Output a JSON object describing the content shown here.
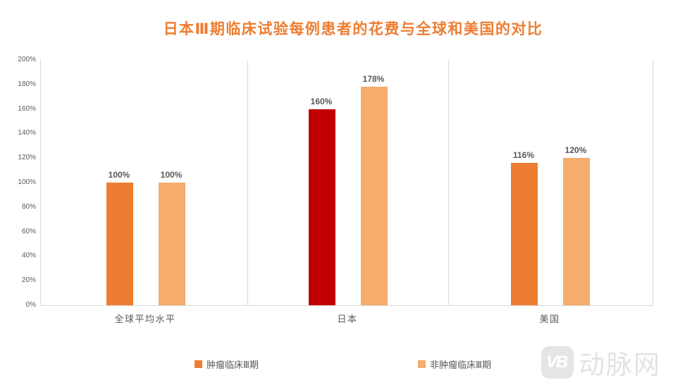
{
  "chart_data": {
    "type": "bar",
    "title": "日本Ⅲ期临床试验每例患者的花费与全球和美国的对比",
    "title_color": "#ED7D31",
    "categories": [
      "全球平均水平",
      "日本",
      "美国"
    ],
    "series": [
      {
        "name": "肿瘤临床Ⅲ期",
        "color": "#ED7D31",
        "values": [
          100,
          160,
          116
        ],
        "bar_colors": [
          "#ED7D31",
          "#C00000",
          "#ED7D31"
        ],
        "labels": [
          "100%",
          "160%",
          "116%"
        ]
      },
      {
        "name": "非肿瘤临床Ⅲ期",
        "color": "#F5AC6C",
        "values": [
          100,
          178,
          120
        ],
        "bar_colors": [
          "#F5AC6C",
          "#F5AC6C",
          "#F5AC6C"
        ],
        "labels": [
          "100%",
          "178%",
          "120%"
        ]
      }
    ],
    "ylim": [
      0,
      200
    ],
    "ytick_step": 20,
    "yticks": [
      "0%",
      "20%",
      "40%",
      "60%",
      "80%",
      "100%",
      "120%",
      "140%",
      "160%",
      "180%",
      "200%"
    ],
    "grid": "vertical-category-separators",
    "legend_position": "bottom",
    "axis_line_color": "#D9D9D9",
    "text_color": "#595959"
  },
  "legend": {
    "items": [
      {
        "label": "肿瘤临床Ⅲ期",
        "color": "#ED7D31"
      },
      {
        "label": "非肿瘤临床Ⅲ期",
        "color": "#F5AC6C"
      }
    ]
  },
  "watermark": {
    "logo": "VB",
    "text": "动脉网",
    "color": "#E3E3E3"
  }
}
